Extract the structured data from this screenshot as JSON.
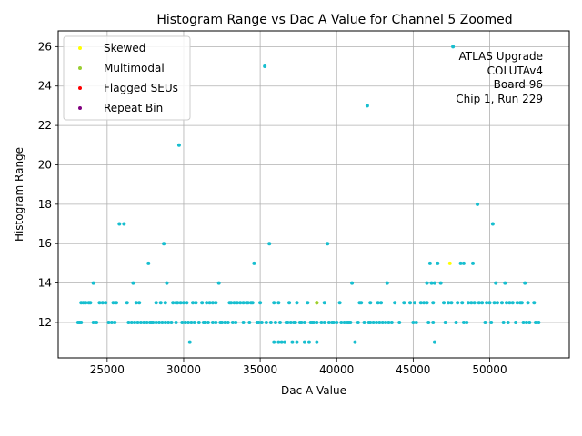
{
  "chart_data": {
    "type": "scatter",
    "title": "Histogram Range vs Dac A Value for Channel 5 Zoomed",
    "xlabel": "Dac A Value",
    "ylabel": "Histogram Range",
    "xlim": [
      21800,
      55200
    ],
    "ylim": [
      10.2,
      26.8
    ],
    "xticks": [
      25000,
      30000,
      35000,
      40000,
      45000,
      50000
    ],
    "yticks": [
      12,
      14,
      16,
      18,
      20,
      22,
      24,
      26
    ],
    "grid": true,
    "legend_position": "upper-left",
    "annotation": [
      "ATLAS Upgrade",
      "COLUTAv4",
      "Board 96",
      "Chip 1, Run 229"
    ],
    "series": [
      {
        "name": "",
        "color": "#17becf",
        "points": [
          [
            23100,
            12
          ],
          [
            23200,
            12
          ],
          [
            23300,
            12
          ],
          [
            23300,
            13
          ],
          [
            23450,
            13
          ],
          [
            23600,
            13
          ],
          [
            23800,
            13
          ],
          [
            23900,
            13
          ],
          [
            24100,
            12
          ],
          [
            24300,
            12
          ],
          [
            24100,
            14
          ],
          [
            24500,
            13
          ],
          [
            24700,
            13
          ],
          [
            24900,
            13
          ],
          [
            25100,
            12
          ],
          [
            25300,
            12
          ],
          [
            25400,
            13
          ],
          [
            25600,
            13
          ],
          [
            25500,
            12
          ],
          [
            25800,
            17
          ],
          [
            26100,
            17
          ],
          [
            26300,
            13
          ],
          [
            26400,
            12
          ],
          [
            26600,
            12
          ],
          [
            26700,
            14
          ],
          [
            26800,
            12
          ],
          [
            26900,
            13
          ],
          [
            27000,
            12
          ],
          [
            27100,
            13
          ],
          [
            27200,
            12
          ],
          [
            27400,
            12
          ],
          [
            27600,
            12
          ],
          [
            27700,
            15
          ],
          [
            27800,
            12
          ],
          [
            27900,
            12
          ],
          [
            28000,
            12
          ],
          [
            28200,
            12
          ],
          [
            28200,
            13
          ],
          [
            28400,
            12
          ],
          [
            28500,
            13
          ],
          [
            28600,
            12
          ],
          [
            28700,
            16
          ],
          [
            28800,
            12
          ],
          [
            28800,
            13
          ],
          [
            28900,
            14
          ],
          [
            29000,
            12
          ],
          [
            29200,
            12
          ],
          [
            29300,
            13
          ],
          [
            29500,
            12
          ],
          [
            29500,
            13
          ],
          [
            29600,
            13
          ],
          [
            29700,
            21
          ],
          [
            29800,
            13
          ],
          [
            30000,
            13
          ],
          [
            29900,
            12
          ],
          [
            30100,
            12
          ],
          [
            30200,
            13
          ],
          [
            30300,
            12
          ],
          [
            30400,
            11
          ],
          [
            30500,
            12
          ],
          [
            30600,
            13
          ],
          [
            30800,
            13
          ],
          [
            30700,
            12
          ],
          [
            31000,
            12
          ],
          [
            31200,
            13
          ],
          [
            31300,
            12
          ],
          [
            31400,
            12
          ],
          [
            31500,
            13
          ],
          [
            31600,
            12
          ],
          [
            31700,
            13
          ],
          [
            31900,
            12
          ],
          [
            31900,
            13
          ],
          [
            32100,
            13
          ],
          [
            32100,
            12
          ],
          [
            32300,
            14
          ],
          [
            32400,
            12
          ],
          [
            32500,
            12
          ],
          [
            32700,
            12
          ],
          [
            32900,
            12
          ],
          [
            33000,
            13
          ],
          [
            33100,
            13
          ],
          [
            33200,
            12
          ],
          [
            33300,
            13
          ],
          [
            33400,
            12
          ],
          [
            33500,
            13
          ],
          [
            33700,
            13
          ],
          [
            33900,
            12
          ],
          [
            33900,
            13
          ],
          [
            34100,
            13
          ],
          [
            34300,
            12
          ],
          [
            34200,
            13
          ],
          [
            34400,
            13
          ],
          [
            34500,
            13
          ],
          [
            34600,
            15
          ],
          [
            34800,
            12
          ],
          [
            34900,
            12
          ],
          [
            35000,
            13
          ],
          [
            35100,
            12
          ],
          [
            35300,
            25
          ],
          [
            35400,
            12
          ],
          [
            35600,
            16
          ],
          [
            35700,
            12
          ],
          [
            35900,
            11
          ],
          [
            35900,
            13
          ],
          [
            36000,
            12
          ],
          [
            36200,
            11
          ],
          [
            36200,
            13
          ],
          [
            36300,
            12
          ],
          [
            36400,
            11
          ],
          [
            36600,
            11
          ],
          [
            36700,
            12
          ],
          [
            36800,
            12
          ],
          [
            36900,
            13
          ],
          [
            37100,
            11
          ],
          [
            37000,
            12
          ],
          [
            37200,
            12
          ],
          [
            37300,
            12
          ],
          [
            37400,
            11
          ],
          [
            37400,
            13
          ],
          [
            37600,
            12
          ],
          [
            37700,
            12
          ],
          [
            37900,
            11
          ],
          [
            37900,
            12
          ],
          [
            38100,
            13
          ],
          [
            38200,
            11
          ],
          [
            38300,
            12
          ],
          [
            38400,
            12
          ],
          [
            38500,
            12
          ],
          [
            38700,
            11
          ],
          [
            38700,
            12
          ],
          [
            39000,
            12
          ],
          [
            39200,
            12
          ],
          [
            39200,
            13
          ],
          [
            39400,
            16
          ],
          [
            39500,
            12
          ],
          [
            39700,
            12
          ],
          [
            39800,
            12
          ],
          [
            40000,
            12
          ],
          [
            40200,
            13
          ],
          [
            40300,
            12
          ],
          [
            40500,
            12
          ],
          [
            40700,
            12
          ],
          [
            40800,
            12
          ],
          [
            40900,
            12
          ],
          [
            41000,
            14
          ],
          [
            41200,
            11
          ],
          [
            41400,
            12
          ],
          [
            41500,
            13
          ],
          [
            41600,
            13
          ],
          [
            41800,
            12
          ],
          [
            42000,
            23
          ],
          [
            42100,
            12
          ],
          [
            42200,
            13
          ],
          [
            42200,
            12
          ],
          [
            42400,
            12
          ],
          [
            42600,
            12
          ],
          [
            42700,
            13
          ],
          [
            42800,
            12
          ],
          [
            42900,
            13
          ],
          [
            43000,
            12
          ],
          [
            43200,
            12
          ],
          [
            43300,
            14
          ],
          [
            43400,
            12
          ],
          [
            43600,
            12
          ],
          [
            43800,
            13
          ],
          [
            44100,
            12
          ],
          [
            44400,
            13
          ],
          [
            44800,
            13
          ],
          [
            45000,
            12
          ],
          [
            45100,
            13
          ],
          [
            45200,
            12
          ],
          [
            45500,
            13
          ],
          [
            45700,
            13
          ],
          [
            45900,
            13
          ],
          [
            45900,
            14
          ],
          [
            46000,
            12
          ],
          [
            46100,
            15
          ],
          [
            46200,
            14
          ],
          [
            46300,
            12
          ],
          [
            46300,
            13
          ],
          [
            46400,
            11
          ],
          [
            46400,
            14
          ],
          [
            46600,
            15
          ],
          [
            46800,
            14
          ],
          [
            47000,
            13
          ],
          [
            47100,
            12
          ],
          [
            47300,
            13
          ],
          [
            47500,
            13
          ],
          [
            47600,
            26
          ],
          [
            47800,
            12
          ],
          [
            47900,
            13
          ],
          [
            48100,
            15
          ],
          [
            48200,
            13
          ],
          [
            48300,
            12
          ],
          [
            48300,
            15
          ],
          [
            48500,
            12
          ],
          [
            48600,
            13
          ],
          [
            48800,
            13
          ],
          [
            48900,
            15
          ],
          [
            49000,
            13
          ],
          [
            49200,
            18
          ],
          [
            49300,
            13
          ],
          [
            49500,
            13
          ],
          [
            49700,
            12
          ],
          [
            49800,
            13
          ],
          [
            50000,
            13
          ],
          [
            50100,
            12
          ],
          [
            50200,
            17
          ],
          [
            50300,
            13
          ],
          [
            50400,
            14
          ],
          [
            50500,
            13
          ],
          [
            50800,
            13
          ],
          [
            50900,
            12
          ],
          [
            51000,
            14
          ],
          [
            51100,
            13
          ],
          [
            51200,
            12
          ],
          [
            51300,
            13
          ],
          [
            51500,
            13
          ],
          [
            51700,
            12
          ],
          [
            51800,
            13
          ],
          [
            52000,
            13
          ],
          [
            52100,
            13
          ],
          [
            52200,
            12
          ],
          [
            52300,
            14
          ],
          [
            52400,
            12
          ],
          [
            52500,
            13
          ],
          [
            52600,
            12
          ],
          [
            52900,
            13
          ],
          [
            53000,
            12
          ],
          [
            53200,
            12
          ]
        ]
      },
      {
        "name": "Skewed",
        "color": "#ffff00",
        "points": [
          [
            47400,
            15
          ],
          [
            38700,
            13
          ]
        ]
      },
      {
        "name": "Multimodal",
        "color": "#9acd32",
        "points": [
          [
            38700,
            13
          ]
        ]
      },
      {
        "name": "Flagged SEUs",
        "color": "#ff0000",
        "points": []
      },
      {
        "name": "Repeat Bin",
        "color": "#800080",
        "points": []
      }
    ]
  }
}
